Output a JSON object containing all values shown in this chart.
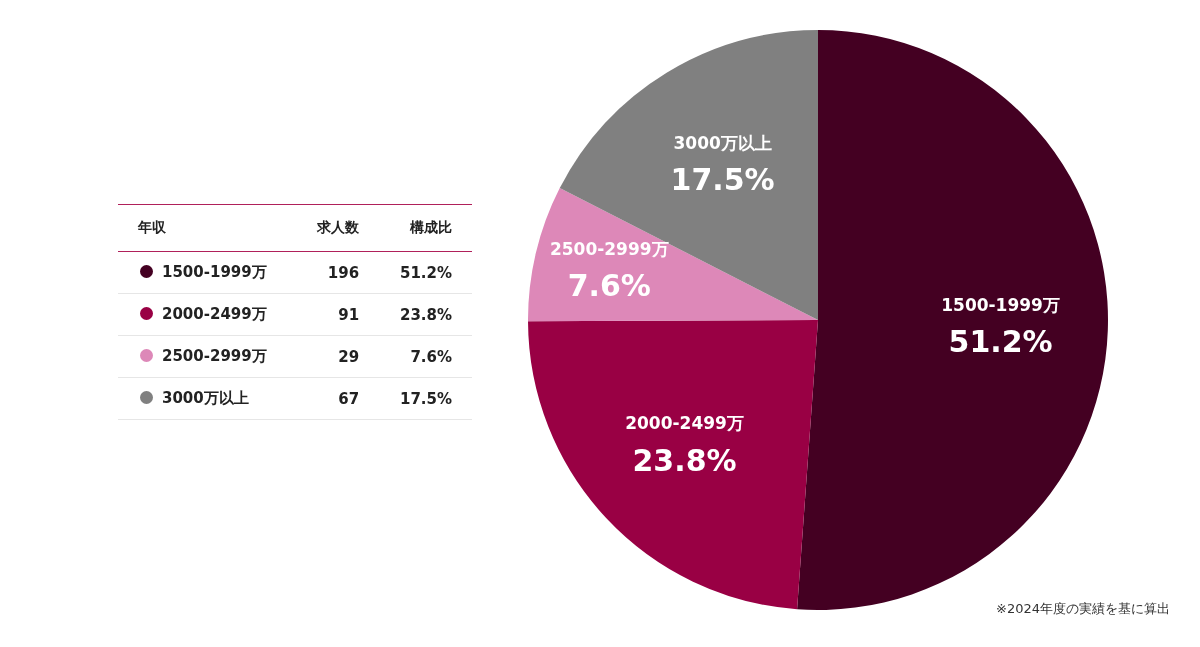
{
  "chart_data": {
    "type": "pie",
    "categories": [
      "1500-1999万",
      "2000-2499万",
      "2500-2999万",
      "3000万以上"
    ],
    "values": [
      51.2,
      23.8,
      7.6,
      17.5
    ],
    "value_labels": [
      "51.2%",
      "23.8%",
      "7.6%",
      "17.5%"
    ],
    "colors": [
      "#440022",
      "#990044",
      "#dd88b8",
      "#808080"
    ],
    "legend": "left",
    "annotations": [
      "年収",
      "求人数",
      "構成比",
      "196",
      "91",
      "29",
      "67",
      "※2024年度の実績を基に算出"
    ]
  }
}
